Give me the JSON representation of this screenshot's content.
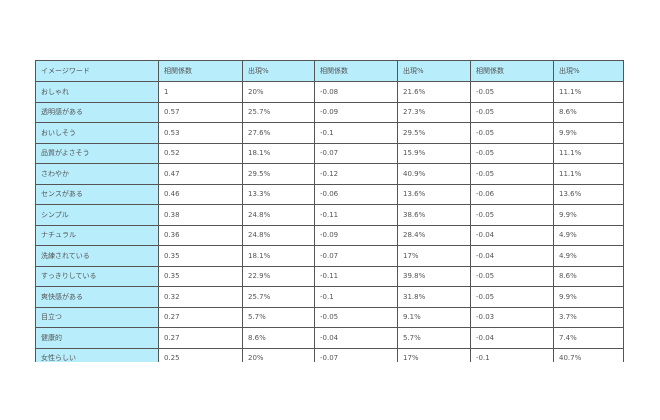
{
  "table": {
    "headers": [
      "イメージワード",
      "相関係数",
      "出現%",
      "相関係数",
      "出現%",
      "相関係数",
      "出現%"
    ],
    "rows": [
      [
        "おしゃれ",
        "1",
        "20%",
        "-0.08",
        "21.6%",
        "-0.05",
        "11.1%"
      ],
      [
        "透明感がある",
        "0.57",
        "25.7%",
        "-0.09",
        "27.3%",
        "-0.05",
        "8.6%"
      ],
      [
        "おいしそう",
        "0.53",
        "27.6%",
        "-0.1",
        "29.5%",
        "-0.05",
        "9.9%"
      ],
      [
        "品質がよさそう",
        "0.52",
        "18.1%",
        "-0.07",
        "15.9%",
        "-0.05",
        "11.1%"
      ],
      [
        "さわやか",
        "0.47",
        "29.5%",
        "-0.12",
        "40.9%",
        "-0.05",
        "11.1%"
      ],
      [
        "センスがある",
        "0.46",
        "13.3%",
        "-0.06",
        "13.6%",
        "-0.06",
        "13.6%"
      ],
      [
        "シンプル",
        "0.38",
        "24.8%",
        "-0.11",
        "38.6%",
        "-0.05",
        "9.9%"
      ],
      [
        "ナチュラル",
        "0.36",
        "24.8%",
        "-0.09",
        "28.4%",
        "-0.04",
        "4.9%"
      ],
      [
        "洗練されている",
        "0.35",
        "18.1%",
        "-0.07",
        "17%",
        "-0.04",
        "4.9%"
      ],
      [
        "すっきりしている",
        "0.35",
        "22.9%",
        "-0.11",
        "39.8%",
        "-0.05",
        "8.6%"
      ],
      [
        "爽快感がある",
        "0.32",
        "25.7%",
        "-0.1",
        "31.8%",
        "-0.05",
        "9.9%"
      ],
      [
        "目立つ",
        "0.27",
        "5.7%",
        "-0.05",
        "9.1%",
        "-0.03",
        "3.7%"
      ],
      [
        "健康的",
        "0.27",
        "8.6%",
        "-0.04",
        "5.7%",
        "-0.04",
        "7.4%"
      ],
      [
        "女性らしい",
        "0.25",
        "20%",
        "-0.07",
        "17%",
        "-0.1",
        "40.7%"
      ]
    ]
  },
  "colors": {
    "header_bg": "#b8eefc",
    "text": "#555555"
  }
}
